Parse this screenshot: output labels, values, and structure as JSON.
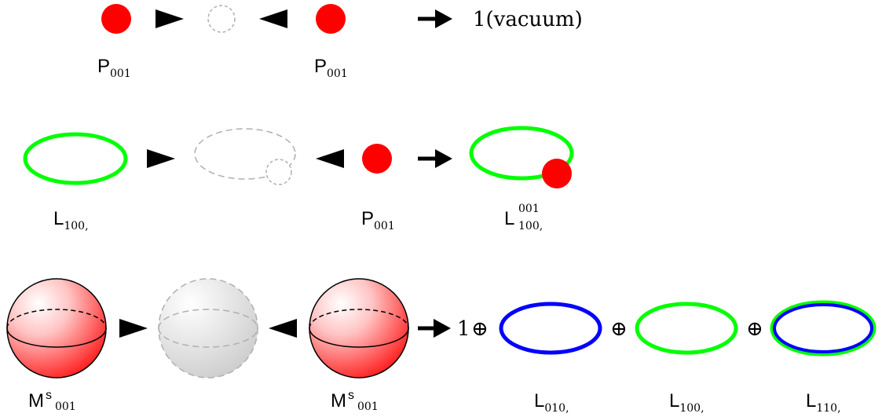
{
  "colors": {
    "particle_red": "#ff0000",
    "loop_green": "#00ff00",
    "loop_blue": "#0000ff",
    "ghost_gray": "#b0b0b0",
    "arrow_black": "#000000"
  },
  "row1": {
    "result_text": "1(vacuum)",
    "labels": [
      {
        "main": "P",
        "sub": "001",
        "sup": ""
      },
      {
        "main": "P",
        "sub": "001",
        "sup": ""
      }
    ]
  },
  "row2": {
    "labels": [
      {
        "main": "L",
        "sub": "100,",
        "sup": ""
      },
      {
        "main": "P",
        "sub": "001",
        "sup": ""
      },
      {
        "main": "L",
        "sub": "100,",
        "sup": "001"
      }
    ]
  },
  "row3": {
    "one": "1",
    "plus": "⊕",
    "labels": [
      {
        "main": "M",
        "sub": "001",
        "sup": "s"
      },
      {
        "main": "M",
        "sub": "001",
        "sup": "s"
      },
      {
        "main": "L",
        "sub": "010,",
        "sup": ""
      },
      {
        "main": "L",
        "sub": "100,",
        "sup": ""
      },
      {
        "main": "L",
        "sub": "110,",
        "sup": ""
      }
    ]
  }
}
